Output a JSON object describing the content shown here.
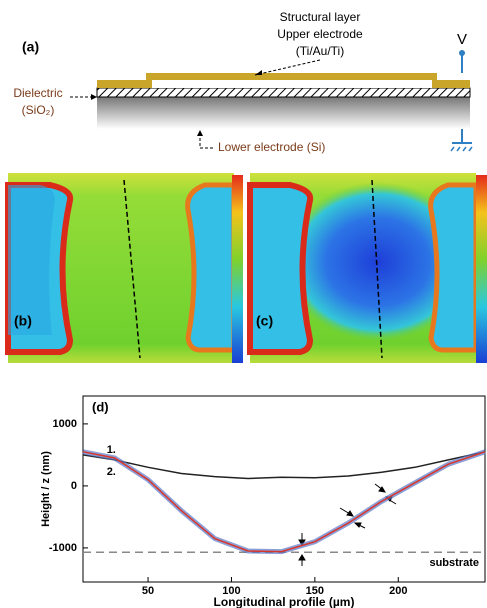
{
  "panel_a": {
    "label": "(a)",
    "structural_layer": "Structural layer",
    "upper_electrode": "Upper electrode",
    "upper_material": "(Ti/Au/Ti)",
    "voltage": "V",
    "dielectric": "Dielectric",
    "dielectric_material": "(SiO₂)",
    "lower_electrode": "Lower electrode (Si)"
  },
  "panel_b": {
    "label": "(b)"
  },
  "panel_c": {
    "label": "(c)"
  },
  "chart_data": {
    "type": "line",
    "panel_label": "(d)",
    "x_label": "Longitudinal profile (µm)",
    "y_label": "Height / z (nm)",
    "x": [
      11,
      30,
      50,
      70,
      90,
      110,
      130,
      150,
      170,
      190,
      210,
      230,
      252
    ],
    "series": [
      {
        "name": "1.",
        "color": "#222222",
        "values": [
          500,
          420,
          300,
          200,
          150,
          120,
          140,
          130,
          160,
          220,
          300,
          420,
          550
        ]
      },
      {
        "name": "2.",
        "color": "#d9362b",
        "values": [
          550,
          450,
          100,
          -400,
          -850,
          -1050,
          -1060,
          -900,
          -600,
          -250,
          50,
          350,
          550
        ]
      }
    ],
    "annotations": [
      {
        "text": "substrate",
        "y": -1070
      }
    ],
    "xlim": [
      11,
      252
    ],
    "ylim": [
      -1550,
      1450
    ],
    "xticks": [
      50,
      100,
      150,
      200
    ],
    "yticks": [
      -1000,
      0,
      1000
    ]
  }
}
